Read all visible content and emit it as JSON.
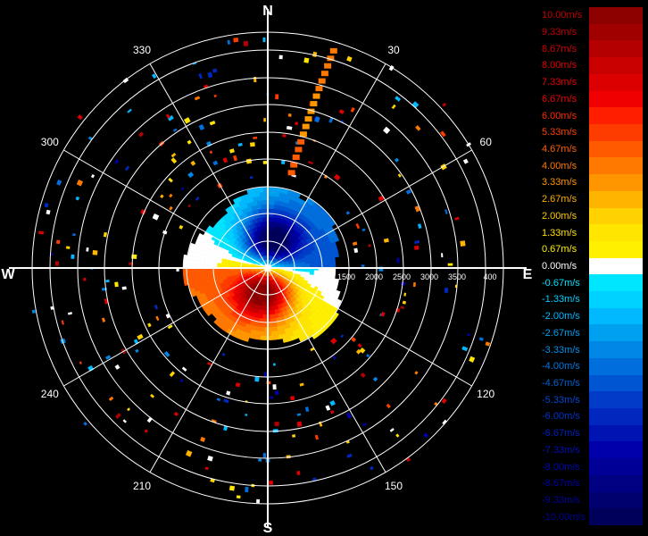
{
  "compass": {
    "north": "N",
    "south": "S",
    "east": "E",
    "west": "W"
  },
  "azimuth_labels": [
    {
      "deg": 30,
      "label": "30"
    },
    {
      "deg": 60,
      "label": "60"
    },
    {
      "deg": 120,
      "label": "120"
    },
    {
      "deg": 150,
      "label": "150"
    },
    {
      "deg": 210,
      "label": "210"
    },
    {
      "deg": 240,
      "label": "240"
    },
    {
      "deg": 300,
      "label": "300"
    },
    {
      "deg": 330,
      "label": "330"
    }
  ],
  "range_labels": [
    "1500",
    "2000",
    "2500",
    "3000",
    "3500",
    "400"
  ],
  "legend": {
    "entries": [
      {
        "label": "10.00m/s",
        "color": "#8c0000",
        "text_color": "#c00000"
      },
      {
        "label": "9.33m/s",
        "color": "#a00000",
        "text_color": "#c00000"
      },
      {
        "label": "8.67m/s",
        "color": "#b40000",
        "text_color": "#d00000"
      },
      {
        "label": "8.00m/s",
        "color": "#c80000",
        "text_color": "#e00000"
      },
      {
        "label": "7.33m/s",
        "color": "#dc0000",
        "text_color": "#e80000"
      },
      {
        "label": "6.67m/s",
        "color": "#f00000",
        "text_color": "#f00000"
      },
      {
        "label": "6.00m/s",
        "color": "#ff1e00",
        "text_color": "#ff2a00"
      },
      {
        "label": "5.33m/s",
        "color": "#ff3c00",
        "text_color": "#ff4000"
      },
      {
        "label": "4.67m/s",
        "color": "#ff5a00",
        "text_color": "#ff6000"
      },
      {
        "label": "4.00m/s",
        "color": "#ff7800",
        "text_color": "#ff7800"
      },
      {
        "label": "3.33m/s",
        "color": "#ff9600",
        "text_color": "#ff9600"
      },
      {
        "label": "2.67m/s",
        "color": "#ffb400",
        "text_color": "#ffb000"
      },
      {
        "label": "2.00m/s",
        "color": "#ffd200",
        "text_color": "#ffc800"
      },
      {
        "label": "1.33m/s",
        "color": "#ffe600",
        "text_color": "#ffe000"
      },
      {
        "label": "0.67m/s",
        "color": "#fff000",
        "text_color": "#fff000"
      },
      {
        "label": "0.00m/s",
        "color": "#ffffff",
        "text_color": "#ffffff"
      },
      {
        "label": "-0.67m/s",
        "color": "#00e6ff",
        "text_color": "#00e0ff"
      },
      {
        "label": "-1.33m/s",
        "color": "#00d2ff",
        "text_color": "#00d0ff"
      },
      {
        "label": "-2.00m/s",
        "color": "#00b9ff",
        "text_color": "#00b8ff"
      },
      {
        "label": "-2.67m/s",
        "color": "#00a0f0",
        "text_color": "#00a0f0"
      },
      {
        "label": "-3.33m/s",
        "color": "#0087e6",
        "text_color": "#0090e8"
      },
      {
        "label": "-4.00m/s",
        "color": "#006edc",
        "text_color": "#0078e0"
      },
      {
        "label": "-4.67m/s",
        "color": "#0055d2",
        "text_color": "#0060d8"
      },
      {
        "label": "-5.33m/s",
        "color": "#003cc8",
        "text_color": "#0048d0"
      },
      {
        "label": "-6.00m/s",
        "color": "#0028be",
        "text_color": "#0034c8"
      },
      {
        "label": "-6.67m/s",
        "color": "#0014b4",
        "text_color": "#0020c0"
      },
      {
        "label": "-7.33m/s",
        "color": "#0000aa",
        "text_color": "#0010b8"
      },
      {
        "label": "-8.00m/s",
        "color": "#000096",
        "text_color": "#0008b0"
      },
      {
        "label": "-8.67m/s",
        "color": "#000082",
        "text_color": "#0000a8"
      },
      {
        "label": "-9.33m/s",
        "color": "#00006e",
        "text_color": "#0000a0"
      },
      {
        "label": "-10.00m/s",
        "color": "#00005a",
        "text_color": "#000098"
      }
    ]
  }
}
